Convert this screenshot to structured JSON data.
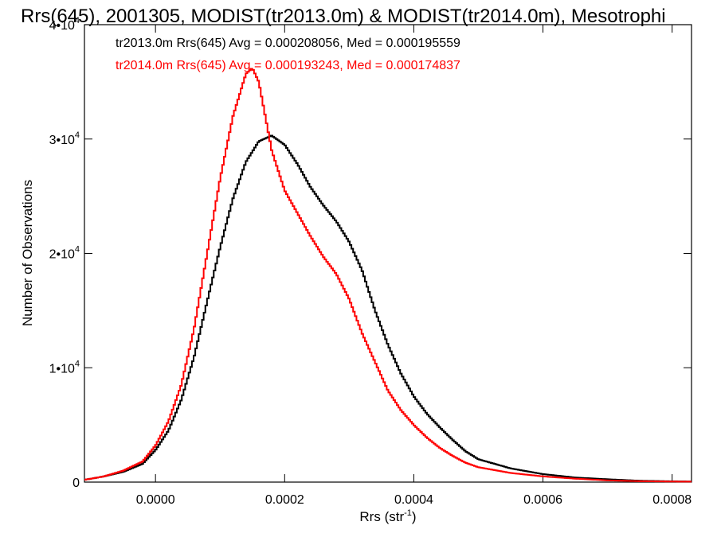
{
  "chart_data": {
    "type": "line",
    "title": "Rrs(645), 2001305, MODIST(tr2013.0m) & MODIST(tr2014.0m), Mesotrophi",
    "xlabel": "Rrs (str",
    "xlabel_sup": "-1",
    "xlabel_end": ")",
    "ylabel": "Number of Observations",
    "xlim": [
      -0.00011,
      0.00083
    ],
    "ylim": [
      0,
      40000
    ],
    "x_ticks": [
      {
        "value": 0.0,
        "label": "0.0000"
      },
      {
        "value": 0.0002,
        "label": "0.0002"
      },
      {
        "value": 0.0004,
        "label": "0.0004"
      },
      {
        "value": 0.0006,
        "label": "0.0006"
      },
      {
        "value": 0.0008,
        "label": "0.0008"
      }
    ],
    "y_ticks": [
      {
        "value": 0,
        "base": "0",
        "exp": ""
      },
      {
        "value": 10000,
        "base": "1•10",
        "exp": "4"
      },
      {
        "value": 20000,
        "base": "2•10",
        "exp": "4"
      },
      {
        "value": 30000,
        "base": "3•10",
        "exp": "4"
      },
      {
        "value": 40000,
        "base": "4•10",
        "exp": "4"
      }
    ],
    "step": "histogram",
    "series": [
      {
        "name": "tr2013.0m",
        "color": "#000000",
        "label": "tr2013.0m Rrs(645) Avg = 0.000208056, Med = 0.000195559",
        "x": [
          -0.00011,
          -8e-05,
          -5e-05,
          -2e-05,
          0.0,
          2e-05,
          4e-05,
          6e-05,
          8e-05,
          0.0001,
          0.00012,
          0.00014,
          0.00016,
          0.00018,
          0.0002,
          0.00022,
          0.00024,
          0.00026,
          0.00028,
          0.0003,
          0.00032,
          0.00034,
          0.00036,
          0.00038,
          0.0004,
          0.00042,
          0.00044,
          0.00046,
          0.00048,
          0.0005,
          0.00055,
          0.0006,
          0.00065,
          0.0007,
          0.00075,
          0.0008,
          0.00083
        ],
        "y": [
          200,
          500,
          900,
          1600,
          2800,
          4500,
          7200,
          11000,
          15800,
          20500,
          24800,
          28000,
          29800,
          30300,
          29500,
          27800,
          25800,
          24200,
          22800,
          21000,
          18500,
          15000,
          12000,
          9500,
          7500,
          6000,
          4800,
          3700,
          2700,
          2000,
          1200,
          700,
          400,
          250,
          120,
          70,
          50
        ]
      },
      {
        "name": "tr2014.0m",
        "color": "#ff0000",
        "label": "tr2014.0m Rrs(645) Avg = 0.000193243, Med = 0.000174837",
        "x": [
          -0.00011,
          -8e-05,
          -5e-05,
          -2e-05,
          0.0,
          2e-05,
          4e-05,
          6e-05,
          8e-05,
          0.0001,
          0.00012,
          0.00014,
          0.00015,
          0.00016,
          0.00018,
          0.0002,
          0.00022,
          0.00024,
          0.00026,
          0.00028,
          0.0003,
          0.00032,
          0.00034,
          0.00036,
          0.00038,
          0.0004,
          0.00042,
          0.00044,
          0.00046,
          0.00048,
          0.0005,
          0.00055,
          0.0006,
          0.00065,
          0.0007,
          0.00075,
          0.0008,
          0.00083
        ],
        "y": [
          200,
          500,
          1000,
          1800,
          3200,
          5300,
          8500,
          13500,
          20000,
          26500,
          32000,
          35700,
          36200,
          35000,
          29000,
          25500,
          23500,
          21500,
          19700,
          18200,
          16000,
          13000,
          10500,
          8000,
          6300,
          5000,
          3900,
          3000,
          2300,
          1700,
          1300,
          800,
          500,
          300,
          150,
          80,
          50,
          40
        ]
      }
    ]
  }
}
